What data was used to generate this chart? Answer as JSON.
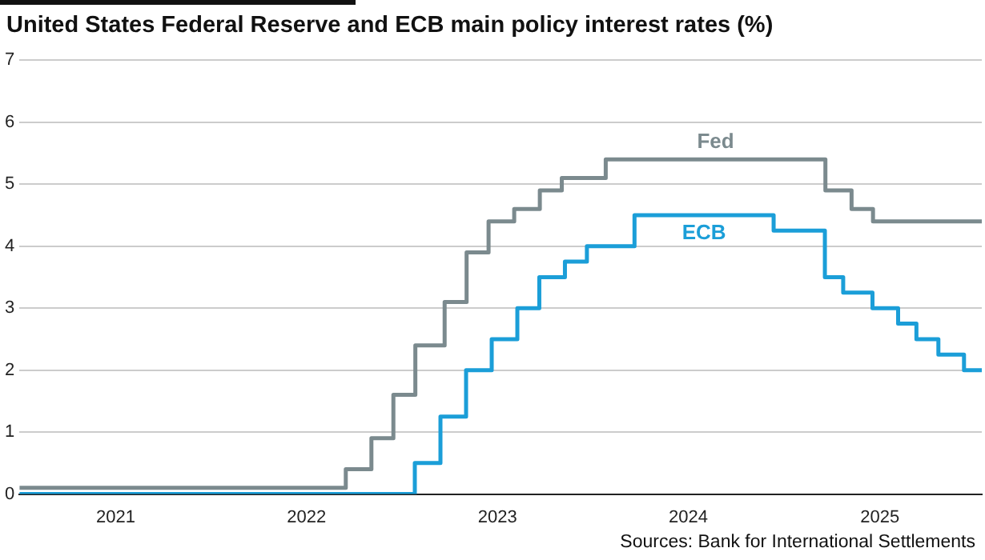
{
  "chart_data": {
    "type": "step",
    "title": "United States Federal Reserve and ECB main policy interest rates (%)",
    "annotations": [
      "Sources: Bank for International Settlements"
    ],
    "series": [
      {
        "name": "Fed",
        "color": "#7b8a8e",
        "x": [
          "2020-07-01",
          "2022-03-17",
          "2022-05-05",
          "2022-06-16",
          "2022-07-28",
          "2022-09-22",
          "2022-11-03",
          "2022-12-15",
          "2023-02-02",
          "2023-03-23",
          "2023-05-04",
          "2023-07-27",
          "2024-09-19",
          "2024-11-08",
          "2024-12-19",
          "2025-07-15"
        ],
        "values": [
          0.1,
          0.4,
          0.9,
          1.6,
          2.4,
          3.1,
          3.9,
          4.4,
          4.6,
          4.9,
          5.1,
          5.4,
          4.9,
          4.6,
          4.4,
          4.4
        ]
      },
      {
        "name": "ECB",
        "color": "#1b9ed8",
        "x": [
          "2020-07-01",
          "2022-07-27",
          "2022-09-14",
          "2022-11-02",
          "2022-12-21",
          "2023-02-08",
          "2023-03-22",
          "2023-05-10",
          "2023-06-21",
          "2023-09-20",
          "2024-06-12",
          "2024-09-18",
          "2024-10-23",
          "2024-12-18",
          "2025-02-05",
          "2025-03-12",
          "2025-04-23",
          "2025-06-11",
          "2025-07-15"
        ],
        "values": [
          0,
          0.5,
          1.25,
          2,
          2.5,
          3,
          3.5,
          3.75,
          4,
          4.5,
          4.25,
          3.5,
          3.25,
          3,
          2.75,
          2.5,
          2.25,
          2,
          2
        ]
      }
    ],
    "xlim": [
      "2020-07-01",
      "2025-07-15"
    ],
    "xticks": [
      {
        "value": "2021-01-01",
        "label": "2021"
      },
      {
        "value": "2022-01-01",
        "label": "2022"
      },
      {
        "value": "2023-01-01",
        "label": "2023"
      },
      {
        "value": "2024-01-01",
        "label": "2024"
      },
      {
        "value": "2025-01-01",
        "label": "2025"
      }
    ],
    "ylim": [
      0,
      7
    ],
    "yticks": [
      0,
      1,
      2,
      3,
      4,
      5,
      6,
      7
    ],
    "grid": "y",
    "legend": false
  }
}
